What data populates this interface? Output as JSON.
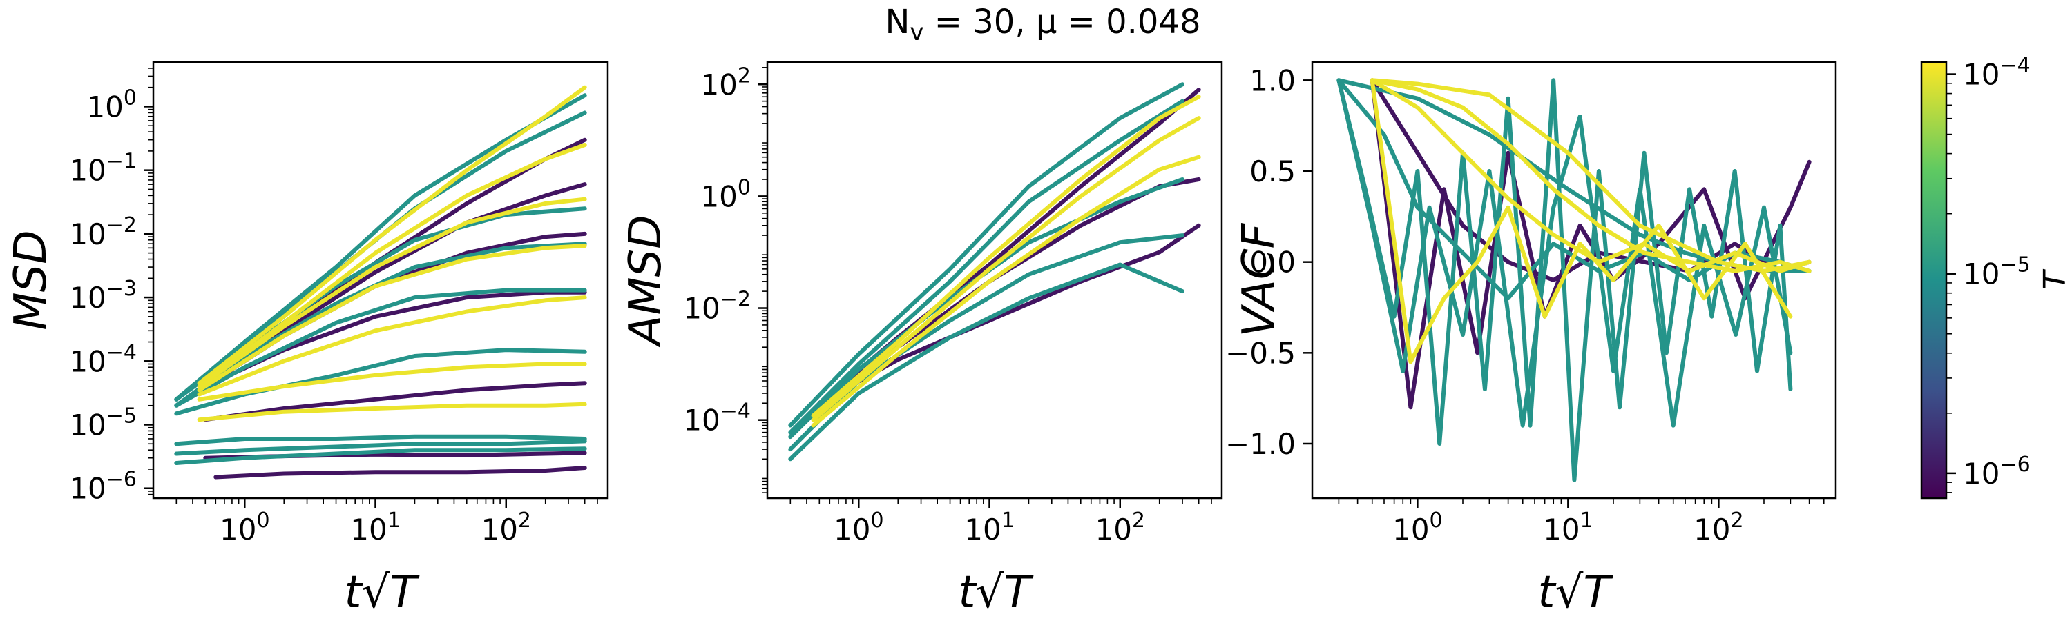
{
  "figure": {
    "title": "N_v = 30, μ = 0.048",
    "title_parts": {
      "main": "N",
      "sub": "v",
      "rest": " = 30, μ = 0.048"
    }
  },
  "colorbar": {
    "label": "T",
    "scale": "log",
    "range": [
      7.5e-07,
      0.000115
    ],
    "ticks": [
      {
        "value": 1e-06,
        "base": "10",
        "exp": "−6"
      },
      {
        "value": 1e-05,
        "base": "10",
        "exp": "−5"
      },
      {
        "value": 0.0001,
        "base": "10",
        "exp": "−4"
      }
    ],
    "colormap": "viridis",
    "colors": [
      "#440154",
      "#3b528b",
      "#21918c",
      "#5ec962",
      "#fde725"
    ]
  },
  "chart_data": [
    {
      "type": "line",
      "panel": "MSD",
      "xlabel": "t√T",
      "ylabel": "MSD",
      "xscale": "log",
      "yscale": "log",
      "xlim": [
        0.2,
        600
      ],
      "ylim": [
        7e-07,
        5
      ],
      "xticks": [
        {
          "value": 1,
          "base": "10",
          "exp": "0"
        },
        {
          "value": 10,
          "base": "10",
          "exp": "1"
        },
        {
          "value": 100,
          "base": "10",
          "exp": "2"
        }
      ],
      "yticks": [
        {
          "value": 1e-06,
          "base": "10",
          "exp": "−6"
        },
        {
          "value": 1e-05,
          "base": "10",
          "exp": "−5"
        },
        {
          "value": 0.0001,
          "base": "10",
          "exp": "−4"
        },
        {
          "value": 0.001,
          "base": "10",
          "exp": "−3"
        },
        {
          "value": 0.01,
          "base": "10",
          "exp": "−2"
        },
        {
          "value": 0.1,
          "base": "10",
          "exp": "−1"
        },
        {
          "value": 1,
          "base": "10",
          "exp": "0"
        }
      ],
      "series": [
        {
          "T": 1e-06,
          "x": [
            0.6,
            2,
            10,
            50,
            200,
            400
          ],
          "y": [
            1.5e-06,
            1.7e-06,
            1.8e-06,
            1.8e-06,
            1.9e-06,
            2.1e-06
          ]
        },
        {
          "T": 1e-06,
          "x": [
            0.5,
            2,
            10,
            50,
            200,
            400
          ],
          "y": [
            3e-06,
            3.2e-06,
            3.4e-06,
            3.3e-06,
            3.5e-06,
            3.6e-06
          ]
        },
        {
          "T": 1e-06,
          "x": [
            0.5,
            2,
            10,
            50,
            200,
            400
          ],
          "y": [
            1.2e-05,
            1.8e-05,
            2.5e-05,
            3.5e-05,
            4.2e-05,
            4.5e-05
          ]
        },
        {
          "T": 1e-06,
          "x": [
            0.5,
            2,
            10,
            50,
            200,
            400
          ],
          "y": [
            4e-05,
            0.00015,
            0.0005,
            0.001,
            0.0012,
            0.0012
          ]
        },
        {
          "T": 1e-06,
          "x": [
            0.5,
            2,
            10,
            50,
            200,
            400
          ],
          "y": [
            4e-05,
            0.00025,
            0.0015,
            0.005,
            0.009,
            0.01
          ]
        },
        {
          "T": 1e-06,
          "x": [
            0.5,
            2,
            10,
            50,
            200,
            400
          ],
          "y": [
            4e-05,
            0.0003,
            0.0025,
            0.015,
            0.04,
            0.06
          ]
        },
        {
          "T": 1e-06,
          "x": [
            0.5,
            2,
            10,
            50,
            200,
            400
          ],
          "y": [
            4e-05,
            0.00035,
            0.0035,
            0.03,
            0.15,
            0.3
          ]
        },
        {
          "T": 1e-05,
          "x": [
            0.3,
            1,
            5,
            20,
            100,
            400
          ],
          "y": [
            2.5e-06,
            3e-06,
            3.5e-06,
            4e-06,
            4e-06,
            4.2e-06
          ]
        },
        {
          "T": 1e-05,
          "x": [
            0.3,
            1,
            5,
            20,
            100,
            400
          ],
          "y": [
            3.5e-06,
            4e-06,
            4.5e-06,
            5e-06,
            5e-06,
            5.5e-06
          ]
        },
        {
          "T": 1e-05,
          "x": [
            0.3,
            1,
            5,
            20,
            100,
            400
          ],
          "y": [
            5e-06,
            6e-06,
            6e-06,
            6.5e-06,
            6.5e-06,
            6e-06
          ]
        },
        {
          "T": 1e-05,
          "x": [
            0.3,
            1,
            5,
            20,
            100,
            400
          ],
          "y": [
            1.5e-05,
            3e-05,
            6e-05,
            0.00012,
            0.00015,
            0.00014
          ]
        },
        {
          "T": 1e-05,
          "x": [
            0.3,
            1,
            5,
            20,
            100,
            400
          ],
          "y": [
            2e-05,
            8e-05,
            0.0004,
            0.001,
            0.0013,
            0.0013
          ]
        },
        {
          "T": 1e-05,
          "x": [
            0.3,
            1,
            5,
            20,
            100,
            400
          ],
          "y": [
            2e-05,
            0.00012,
            0.0008,
            0.003,
            0.006,
            0.007
          ]
        },
        {
          "T": 1e-05,
          "x": [
            0.3,
            1,
            5,
            20,
            100,
            400
          ],
          "y": [
            2.5e-05,
            0.00015,
            0.0015,
            0.008,
            0.02,
            0.025
          ]
        },
        {
          "T": 1e-05,
          "x": [
            0.3,
            1,
            5,
            20,
            100,
            400
          ],
          "y": [
            2.5e-05,
            0.00018,
            0.0025,
            0.025,
            0.2,
            0.8
          ]
        },
        {
          "T": 1e-05,
          "x": [
            0.3,
            1,
            5,
            20,
            100,
            400
          ],
          "y": [
            2.5e-05,
            0.0002,
            0.003,
            0.04,
            0.3,
            1.5
          ]
        },
        {
          "T": 0.0001,
          "x": [
            0.45,
            2,
            10,
            50,
            200,
            400
          ],
          "y": [
            1.2e-05,
            1.6e-05,
            1.8e-05,
            2e-05,
            2e-05,
            2.1e-05
          ]
        },
        {
          "T": 0.0001,
          "x": [
            0.45,
            2,
            10,
            50,
            200,
            400
          ],
          "y": [
            2.5e-05,
            4e-05,
            6e-05,
            8e-05,
            9e-05,
            9e-05
          ]
        },
        {
          "T": 0.0001,
          "x": [
            0.45,
            2,
            10,
            50,
            200,
            400
          ],
          "y": [
            3e-05,
            0.0001,
            0.0003,
            0.0006,
            0.0009,
            0.001
          ]
        },
        {
          "T": 0.0001,
          "x": [
            0.45,
            2,
            10,
            50,
            200,
            400
          ],
          "y": [
            3.5e-05,
            0.00025,
            0.0015,
            0.004,
            0.006,
            0.0065
          ]
        },
        {
          "T": 0.0001,
          "x": [
            0.45,
            2,
            10,
            50,
            200,
            400
          ],
          "y": [
            4e-05,
            0.00035,
            0.003,
            0.015,
            0.03,
            0.035
          ]
        },
        {
          "T": 0.0001,
          "x": [
            0.45,
            2,
            10,
            50,
            200,
            400
          ],
          "y": [
            4e-05,
            0.0004,
            0.005,
            0.04,
            0.15,
            0.25
          ]
        },
        {
          "T": 0.0001,
          "x": [
            0.45,
            2,
            10,
            50,
            200,
            400
          ],
          "y": [
            4.5e-05,
            0.0005,
            0.008,
            0.1,
            0.7,
            2
          ]
        }
      ]
    },
    {
      "type": "line",
      "panel": "AMSD",
      "xlabel": "t√T",
      "ylabel": "AMSD",
      "xscale": "log",
      "yscale": "log",
      "xlim": [
        0.2,
        600
      ],
      "ylim": [
        4e-06,
        250
      ],
      "xticks": [
        {
          "value": 1,
          "base": "10",
          "exp": "0"
        },
        {
          "value": 10,
          "base": "10",
          "exp": "1"
        },
        {
          "value": 100,
          "base": "10",
          "exp": "2"
        }
      ],
      "yticks": [
        {
          "value": 0.0001,
          "base": "10",
          "exp": "−4"
        },
        {
          "value": 0.01,
          "base": "10",
          "exp": "−2"
        },
        {
          "value": 1,
          "base": "10",
          "exp": "0"
        },
        {
          "value": 100,
          "base": "10",
          "exp": "2"
        }
      ],
      "series": [
        {
          "T": 1e-06,
          "x": [
            0.5,
            2,
            10,
            50,
            200,
            400
          ],
          "y": [
            0.0002,
            0.0012,
            0.006,
            0.03,
            0.1,
            0.3
          ]
        },
        {
          "T": 1e-06,
          "x": [
            0.5,
            2,
            10,
            50,
            200,
            400
          ],
          "y": [
            0.0002,
            0.002,
            0.03,
            0.3,
            1.5,
            2
          ]
        },
        {
          "T": 1e-06,
          "x": [
            0.5,
            2,
            10,
            50,
            200,
            400
          ],
          "y": [
            0.0002,
            0.003,
            0.06,
            1.5,
            20,
            80
          ]
        },
        {
          "T": 1e-05,
          "x": [
            0.3,
            1,
            5,
            20,
            100,
            300
          ],
          "y": [
            2e-05,
            0.0003,
            0.003,
            0.015,
            0.06,
            0.02
          ]
        },
        {
          "T": 1e-05,
          "x": [
            0.3,
            1,
            5,
            20,
            100,
            300
          ],
          "y": [
            3e-05,
            0.0005,
            0.006,
            0.04,
            0.15,
            0.2
          ]
        },
        {
          "T": 1e-05,
          "x": [
            0.3,
            1,
            5,
            20,
            100,
            300
          ],
          "y": [
            5e-05,
            0.0008,
            0.015,
            0.15,
            0.8,
            2
          ]
        },
        {
          "T": 1e-05,
          "x": [
            0.3,
            1,
            5,
            20,
            100,
            300
          ],
          "y": [
            6e-05,
            0.001,
            0.03,
            0.8,
            10,
            50
          ]
        },
        {
          "T": 1e-05,
          "x": [
            0.3,
            1,
            5,
            20,
            100,
            300
          ],
          "y": [
            8e-05,
            0.0015,
            0.05,
            1.5,
            25,
            100
          ]
        },
        {
          "T": 0.0001,
          "x": [
            0.45,
            2,
            10,
            50,
            200,
            400
          ],
          "y": [
            8e-05,
            0.0015,
            0.03,
            0.4,
            3,
            5
          ]
        },
        {
          "T": 0.0001,
          "x": [
            0.45,
            2,
            10,
            50,
            200,
            400
          ],
          "y": [
            0.0001,
            0.002,
            0.05,
            1,
            10,
            25
          ]
        },
        {
          "T": 0.0001,
          "x": [
            0.45,
            2,
            10,
            50,
            200,
            400
          ],
          "y": [
            0.00012,
            0.0025,
            0.08,
            2,
            25,
            60
          ]
        }
      ]
    },
    {
      "type": "line",
      "panel": "VACF",
      "xlabel": "t√T",
      "ylabel": "VACF",
      "xscale": "log",
      "yscale": "linear",
      "xlim": [
        0.2,
        600
      ],
      "ylim": [
        -1.3,
        1.1
      ],
      "xticks": [
        {
          "value": 1,
          "base": "10",
          "exp": "0"
        },
        {
          "value": 10,
          "base": "10",
          "exp": "1"
        },
        {
          "value": 100,
          "base": "10",
          "exp": "2"
        }
      ],
      "yticks": [
        {
          "value": 1,
          "text": "1.0"
        },
        {
          "value": 0.5,
          "text": "0.5"
        },
        {
          "value": 0,
          "text": "0.0"
        },
        {
          "value": -0.5,
          "text": "−0.5"
        },
        {
          "value": -1,
          "text": "−1.0"
        }
      ],
      "series": [
        {
          "T": 1e-06,
          "x": [
            0.5,
            0.9,
            1.5,
            2.5,
            4,
            7,
            12,
            20,
            40,
            80,
            150,
            300,
            400
          ],
          "y": [
            1.0,
            -0.8,
            0.4,
            -0.5,
            0.6,
            -0.3,
            0.2,
            -0.1,
            0.1,
            0.4,
            -0.2,
            0.3,
            0.55
          ]
        },
        {
          "T": 1e-06,
          "x": [
            0.5,
            1,
            2,
            4,
            8,
            16,
            32,
            64,
            128,
            256,
            400
          ],
          "y": [
            1.0,
            0.6,
            0.2,
            0.0,
            -0.1,
            0.05,
            0.0,
            -0.05,
            0.1,
            -0.05,
            0.0
          ]
        },
        {
          "T": 1e-05,
          "x": [
            0.3,
            0.45,
            0.7,
            1.0,
            1.4,
            2.0,
            2.8,
            4.0,
            5.6,
            8,
            11,
            16,
            22,
            32,
            45,
            64,
            90,
            128,
            180,
            256,
            300
          ],
          "y": [
            1.0,
            0.4,
            -0.3,
            0.5,
            -1.0,
            0.6,
            -0.7,
            0.9,
            -0.9,
            1.0,
            -1.2,
            0.5,
            -0.8,
            0.6,
            -0.5,
            0.4,
            -0.3,
            0.5,
            -0.6,
            0.2,
            -0.7
          ]
        },
        {
          "T": 1e-05,
          "x": [
            0.3,
            0.5,
            0.8,
            1.2,
            2,
            3,
            5,
            8,
            12,
            20,
            30,
            50,
            80,
            130,
            200,
            300
          ],
          "y": [
            1.0,
            0.2,
            -0.6,
            0.3,
            -0.4,
            0.5,
            -0.9,
            0.3,
            0.8,
            -0.6,
            0.4,
            -0.9,
            0.2,
            -0.4,
            0.3,
            -0.5
          ]
        },
        {
          "T": 1e-05,
          "x": [
            0.3,
            0.6,
            1,
            2,
            4,
            8,
            16,
            32,
            64,
            128,
            256,
            400
          ],
          "y": [
            1.0,
            0.7,
            0.3,
            0.05,
            -0.2,
            0.1,
            -0.05,
            0.05,
            -0.1,
            0.05,
            0.0,
            -0.05
          ]
        },
        {
          "T": 1e-05,
          "x": [
            0.3,
            1,
            3,
            10,
            30,
            60,
            100,
            200,
            400
          ],
          "y": [
            1.0,
            0.9,
            0.7,
            0.4,
            0.15,
            0.05,
            0.0,
            -0.05,
            -0.05
          ]
        },
        {
          "T": 0.0001,
          "x": [
            0.5,
            0.9,
            1.5,
            2.5,
            4,
            7,
            12,
            20,
            40,
            80,
            150,
            300
          ],
          "y": [
            1.0,
            -0.55,
            -0.2,
            0.0,
            0.3,
            -0.3,
            0.1,
            -0.1,
            0.2,
            -0.2,
            0.1,
            -0.3
          ]
        },
        {
          "T": 0.0001,
          "x": [
            0.5,
            1,
            2,
            4,
            8,
            16,
            32,
            64,
            128,
            256,
            400
          ],
          "y": [
            1.0,
            0.85,
            0.6,
            0.35,
            0.15,
            0.0,
            0.1,
            -0.05,
            0.05,
            -0.05,
            0.0
          ]
        },
        {
          "T": 0.0001,
          "x": [
            0.5,
            1,
            2,
            4,
            8,
            16,
            32,
            64,
            128,
            256,
            400
          ],
          "y": [
            1.0,
            0.95,
            0.85,
            0.65,
            0.4,
            0.2,
            0.05,
            0.0,
            -0.05,
            0.0,
            -0.05
          ]
        },
        {
          "T": 0.0001,
          "x": [
            0.5,
            1,
            3,
            10,
            30,
            100,
            200,
            400
          ],
          "y": [
            1.0,
            0.98,
            0.92,
            0.6,
            0.2,
            0.0,
            -0.05,
            0.0
          ]
        }
      ]
    }
  ]
}
